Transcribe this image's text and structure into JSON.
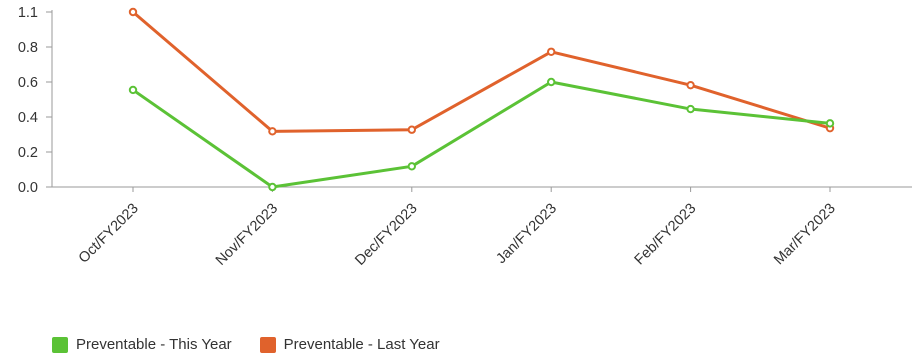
{
  "chart_data": {
    "type": "line",
    "title": "",
    "xlabel": "",
    "ylabel": "",
    "categories": [
      "Oct/FY2023",
      "Nov/FY2023",
      "Dec/FY2023",
      "Jan/FY2023",
      "Feb/FY2023",
      "Mar/FY2023"
    ],
    "y_ticks": [
      "1.1",
      "0.8",
      "0.6",
      "0.4",
      "0.2",
      "0.0"
    ],
    "ylim": [
      0,
      1.1
    ],
    "grid": false,
    "legend_position": "bottom-left",
    "series": [
      {
        "name": "Preventable - This Year",
        "color": "#5bc236",
        "values": [
          0.61,
          0.0,
          0.13,
          0.66,
          0.49,
          0.4
        ]
      },
      {
        "name": "Preventable - Last Year",
        "color": "#e0622c",
        "values": [
          1.1,
          0.35,
          0.36,
          0.85,
          0.64,
          0.37
        ]
      }
    ]
  }
}
